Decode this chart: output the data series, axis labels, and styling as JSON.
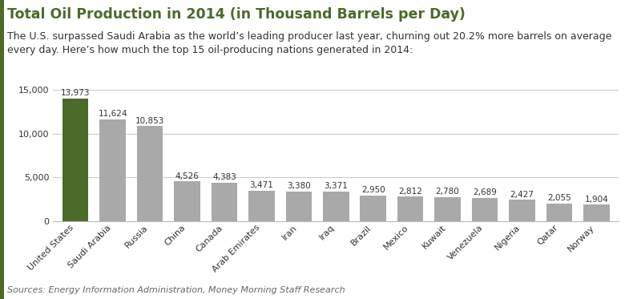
{
  "title": "Total Oil Production in 2014 (in Thousand Barrels per Day)",
  "subtitle": "The U.S. surpassed Saudi Arabia as the world’s leading producer last year, churning out 20.2% more barrels on average\nevery day. Here’s how much the top 15 oil-producing nations generated in 2014:",
  "source": "Sources: Energy Information Administration, Money Morning Staff Research",
  "categories": [
    "United States",
    "Saudi Arabia",
    "Russia",
    "China",
    "Canada",
    "Arab Emirates",
    "Iran",
    "Iraq",
    "Brazil",
    "Mexico",
    "Kuwait",
    "Venezuela",
    "Nigeria",
    "Qatar",
    "Norway"
  ],
  "values": [
    13973,
    11624,
    10853,
    4526,
    4383,
    3471,
    3380,
    3371,
    2950,
    2812,
    2780,
    2689,
    2427,
    2055,
    1904
  ],
  "bar_colors": [
    "#4a6b2a",
    "#a9a9a9",
    "#a9a9a9",
    "#a9a9a9",
    "#a9a9a9",
    "#a9a9a9",
    "#a9a9a9",
    "#a9a9a9",
    "#a9a9a9",
    "#a9a9a9",
    "#a9a9a9",
    "#a9a9a9",
    "#a9a9a9",
    "#a9a9a9",
    "#a9a9a9"
  ],
  "ylim": [
    0,
    15000
  ],
  "yticks": [
    0,
    5000,
    10000,
    15000
  ],
  "title_color": "#4a6b2a",
  "subtitle_color": "#333333",
  "source_color": "#666666",
  "value_label_color": "#333333",
  "background_color": "#ffffff",
  "grid_color": "#cccccc",
  "title_fontsize": 12.5,
  "subtitle_fontsize": 9.0,
  "source_fontsize": 8.0,
  "value_fontsize": 7.5,
  "tick_fontsize": 8.0,
  "accent_color": "#4a6b2a"
}
